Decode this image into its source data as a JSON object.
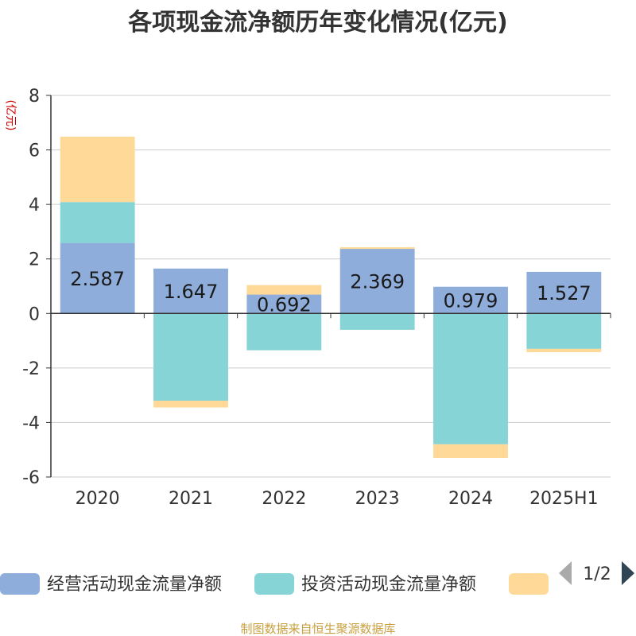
{
  "title": "各项现金流净额历年变化情况(亿元)",
  "unit_label": "(亿元)",
  "source": "制图数据来自恒生聚源数据库",
  "legend": {
    "pager": "1/2",
    "prev_icon": "triangle-left-icon",
    "next_icon": "triangle-right-icon"
  },
  "colors": {
    "operating": "#8eaddb",
    "investing": "#86d4d6",
    "financing": "#fed998",
    "axis": "#333333",
    "grid": "#cccccc",
    "pager_disabled": "#aaaaaa",
    "pager_active": "#2f4554"
  },
  "chart_data": {
    "type": "bar",
    "stacked": true,
    "categories": [
      "2020",
      "2021",
      "2022",
      "2023",
      "2024",
      "2025H1"
    ],
    "series": [
      {
        "name": "经营活动现金流量净额",
        "color_key": "operating",
        "values": [
          2.587,
          1.647,
          0.692,
          2.369,
          0.979,
          1.527
        ]
      },
      {
        "name": "投资活动现金流量净额",
        "color_key": "investing",
        "values": [
          1.5,
          -3.2,
          -1.35,
          -0.6,
          -4.8,
          -1.3
        ]
      },
      {
        "name": "",
        "color_key": "financing",
        "values": [
          2.4,
          -0.25,
          0.35,
          0.06,
          -0.5,
          -0.12
        ]
      }
    ],
    "data_labels": [
      "2.587",
      "1.647",
      "0.692",
      "2.369",
      "0.979",
      "1.527"
    ],
    "ylim": [
      -6,
      8
    ],
    "yticks": [
      8,
      6,
      4,
      2,
      0,
      -2,
      -4,
      -6
    ],
    "grid": true,
    "legend_position": "bottom"
  }
}
